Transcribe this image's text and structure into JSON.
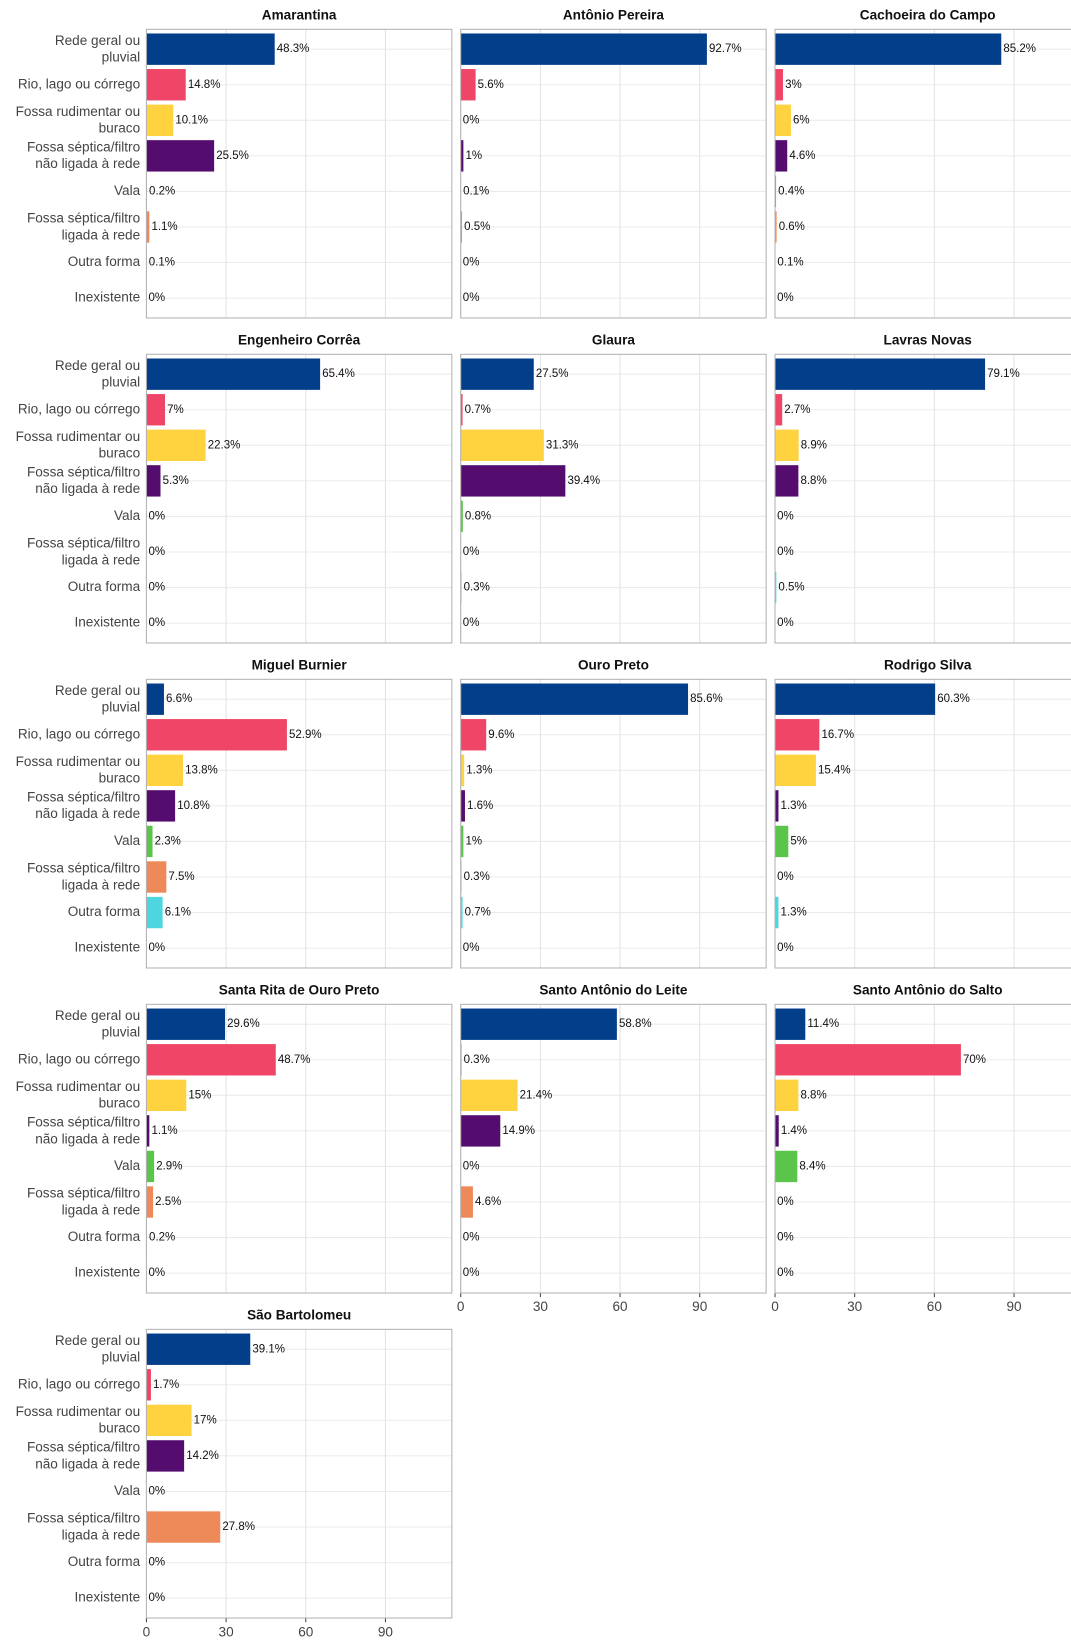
{
  "chart_data": {
    "type": "bar",
    "orientation": "horizontal",
    "categories": [
      "Rede geral ou pluvial",
      "Rio, lago ou córrego",
      "Fossa rudimentar ou buraco",
      "Fossa séptica/filtro não ligada à rede",
      "Vala",
      "Fossa séptica/filtro ligada à rede",
      "Outra forma",
      "Inexistente"
    ],
    "colors": [
      "#023e8a",
      "#ef4566",
      "#ffd23f",
      "#540d6e",
      "#5bc44a",
      "#ee8959",
      "#4dd6e0",
      "#999999"
    ],
    "xlim": [
      0,
      115
    ],
    "xticks": [
      0,
      30,
      60,
      90
    ],
    "grid": true,
    "panels": [
      {
        "title": "Amarantina",
        "values": [
          48.3,
          14.8,
          10.1,
          25.5,
          0.2,
          1.1,
          0.1,
          0
        ],
        "value_labels": [
          "48.3%",
          "14.8%",
          "10.1%",
          "25.5%",
          "0.2%",
          "1.1%",
          "0.1%",
          "0%"
        ]
      },
      {
        "title": "Antônio Pereira",
        "values": [
          92.7,
          5.6,
          0,
          1,
          0.1,
          0.5,
          0,
          0
        ],
        "value_labels": [
          "92.7%",
          "5.6%",
          "0%",
          "1%",
          "0.1%",
          "0.5%",
          "0%",
          "0%"
        ]
      },
      {
        "title": "Cachoeira do Campo",
        "values": [
          85.2,
          3,
          6,
          4.6,
          0.4,
          0.6,
          0.1,
          0
        ],
        "value_labels": [
          "85.2%",
          "3%",
          "6%",
          "4.6%",
          "0.4%",
          "0.6%",
          "0.1%",
          "0%"
        ]
      },
      {
        "title": "Engenheiro Corrêa",
        "values": [
          65.4,
          7,
          22.3,
          5.3,
          0,
          0,
          0,
          0
        ],
        "value_labels": [
          "65.4%",
          "7%",
          "22.3%",
          "5.3%",
          "0%",
          "0%",
          "0%",
          "0%"
        ]
      },
      {
        "title": "Glaura",
        "values": [
          27.5,
          0.7,
          31.3,
          39.4,
          0.8,
          0,
          0.3,
          0
        ],
        "value_labels": [
          "27.5%",
          "0.7%",
          "31.3%",
          "39.4%",
          "0.8%",
          "0%",
          "0.3%",
          "0%"
        ]
      },
      {
        "title": "Lavras Novas",
        "values": [
          79.1,
          2.7,
          8.9,
          8.8,
          0,
          0,
          0.5,
          0
        ],
        "value_labels": [
          "79.1%",
          "2.7%",
          "8.9%",
          "8.8%",
          "0%",
          "0%",
          "0.5%",
          "0%"
        ]
      },
      {
        "title": "Miguel Burnier",
        "values": [
          6.6,
          52.9,
          13.8,
          10.8,
          2.3,
          7.5,
          6.1,
          0
        ],
        "value_labels": [
          "6.6%",
          "52.9%",
          "13.8%",
          "10.8%",
          "2.3%",
          "7.5%",
          "6.1%",
          "0%"
        ]
      },
      {
        "title": "Ouro Preto",
        "values": [
          85.6,
          9.6,
          1.3,
          1.6,
          1,
          0.3,
          0.7,
          0
        ],
        "value_labels": [
          "85.6%",
          "9.6%",
          "1.3%",
          "1.6%",
          "1%",
          "0.3%",
          "0.7%",
          "0%"
        ]
      },
      {
        "title": "Rodrigo Silva",
        "values": [
          60.3,
          16.7,
          15.4,
          1.3,
          5,
          0,
          1.3,
          0
        ],
        "value_labels": [
          "60.3%",
          "16.7%",
          "15.4%",
          "1.3%",
          "5%",
          "0%",
          "1.3%",
          "0%"
        ]
      },
      {
        "title": "Santa Rita de Ouro Preto",
        "values": [
          29.6,
          48.7,
          15,
          1.1,
          2.9,
          2.5,
          0.2,
          0
        ],
        "value_labels": [
          "29.6%",
          "48.7%",
          "15%",
          "1.1%",
          "2.9%",
          "2.5%",
          "0.2%",
          "0%"
        ]
      },
      {
        "title": "Santo Antônio do Leite",
        "values": [
          58.8,
          0.3,
          21.4,
          14.9,
          0,
          4.6,
          0,
          0
        ],
        "value_labels": [
          "58.8%",
          "0.3%",
          "21.4%",
          "14.9%",
          "0%",
          "4.6%",
          "0%",
          "0%"
        ]
      },
      {
        "title": "Santo Antônio do Salto",
        "values": [
          11.4,
          70,
          8.8,
          1.4,
          8.4,
          0,
          0,
          0
        ],
        "value_labels": [
          "11.4%",
          "70%",
          "8.8%",
          "1.4%",
          "8.4%",
          "0%",
          "0%",
          "0%"
        ]
      },
      {
        "title": "São Bartolomeu",
        "values": [
          39.1,
          1.7,
          17,
          14.2,
          0,
          27.8,
          0,
          0
        ],
        "value_labels": [
          "39.1%",
          "1.7%",
          "17%",
          "14.2%",
          "0%",
          "27.8%",
          "0%",
          "0%"
        ]
      }
    ]
  }
}
